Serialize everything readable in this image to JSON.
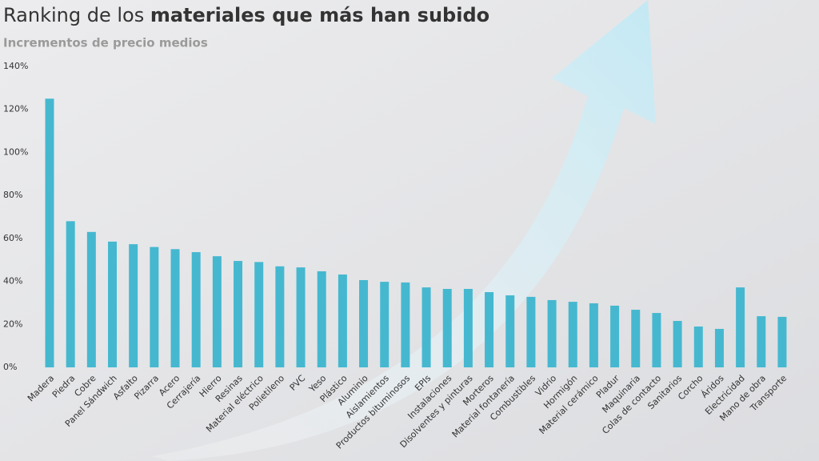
{
  "chart_data": {
    "type": "bar",
    "title": "Ranking de los",
    "title_bold": "materiales que más han subido",
    "subtitle": "Incrementos de precio medios",
    "categories": [
      "Madera",
      "Piedra",
      "Cobre",
      "Panel Sándwich",
      "Asfalto",
      "Pizarra",
      "Acero",
      "Cerrajería",
      "Hierro",
      "Resinas",
      "Material eléctrico",
      "Polietileno",
      "PVC",
      "Yeso",
      "Plástico",
      "Aluminio",
      "Aislamientos",
      "Productos bituminosos",
      "EPIs",
      "Instalaciones",
      "Disolventes y pinturas",
      "Morteros",
      "Material fontanería",
      "Combustibles",
      "Vidrio",
      "Hormigón",
      "Material cerámico",
      "Pladur",
      "Maquinaria",
      "Colas de contacto",
      "Sanitarios",
      "Corcho",
      "Áridos",
      "Electricidad",
      "Mano de obra",
      "Transporte"
    ],
    "values": [
      125,
      68,
      63,
      58.5,
      57.3,
      56,
      55,
      53.6,
      51.7,
      49.5,
      49,
      47,
      46.5,
      44.7,
      43.2,
      40.6,
      39.8,
      39.5,
      37.2,
      36.5,
      36.5,
      35,
      33.5,
      32.8,
      31.3,
      30.5,
      29.8,
      28.7,
      26.8,
      25.3,
      21.6,
      19,
      17.9,
      37.2,
      23.8,
      23.5
    ],
    "color": "#45b8d0",
    "ylim": [
      0,
      140
    ],
    "yticks": [
      {
        "value": 0,
        "label": "0%"
      },
      {
        "value": 20,
        "label": "20%"
      },
      {
        "value": 40,
        "label": "40%"
      },
      {
        "value": 60,
        "label": "60%"
      },
      {
        "value": 80,
        "label": "80%"
      },
      {
        "value": 100,
        "label": "100%"
      },
      {
        "value": 120,
        "label": "120%"
      },
      {
        "value": 140,
        "label": "140%"
      }
    ],
    "grid": false
  }
}
